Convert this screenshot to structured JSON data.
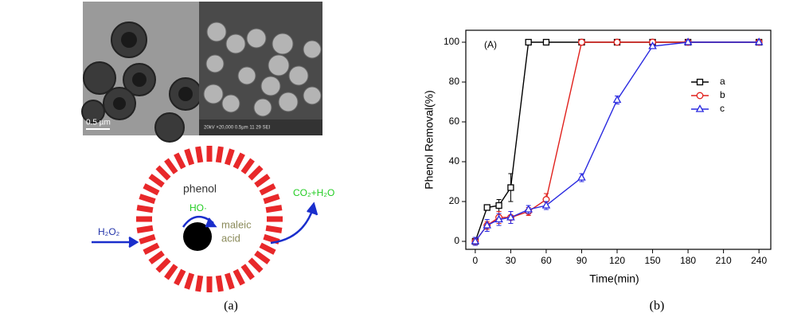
{
  "panel_a": {
    "scale_bar": "0.5 µm",
    "sem_info": "20kV  ×20,000  0.5µm    11 29 SEI",
    "labels": {
      "phenol": "phenol",
      "radical": "HO·",
      "maleic": "maleic",
      "acid": "acid",
      "oxidant": "H₂O₂",
      "products": "CO₂+H₂O"
    }
  },
  "captions": [
    "(a)",
    "(b)"
  ],
  "chart_data": {
    "type": "line",
    "annotation": "(A)",
    "x_label": "Time(min)",
    "y_label": "Phenol Removal(%)",
    "x": [
      0,
      10,
      20,
      30,
      45,
      60,
      90,
      120,
      150,
      180,
      240
    ],
    "series": [
      {
        "name": "a",
        "color": "#000000",
        "marker": "square",
        "values": [
          0,
          17,
          18,
          27,
          100,
          100,
          100,
          100,
          100,
          100,
          100
        ],
        "errors": [
          2,
          1,
          3,
          7,
          0,
          0,
          0,
          0,
          0,
          0,
          0
        ]
      },
      {
        "name": "b",
        "color": "#e0201c",
        "marker": "circle",
        "values": [
          0,
          8,
          12,
          12,
          15,
          21,
          100,
          100,
          100,
          100,
          100
        ],
        "errors": [
          2,
          2,
          3,
          3,
          2,
          3,
          0,
          0,
          0,
          0,
          0
        ]
      },
      {
        "name": "c",
        "color": "#2a2ae0",
        "marker": "triangle",
        "values": [
          0,
          8,
          11,
          12,
          16,
          18,
          32,
          71,
          98,
          100,
          100
        ],
        "errors": [
          2,
          3,
          3,
          3,
          2,
          2,
          2,
          2,
          1,
          1,
          0
        ]
      }
    ],
    "xlim": [
      -8,
      250
    ],
    "ylim": [
      -4,
      106
    ],
    "xticks": [
      0,
      30,
      60,
      90,
      120,
      150,
      180,
      210,
      240
    ],
    "yticks": [
      0,
      20,
      40,
      60,
      80,
      100
    ],
    "legend": "upper-right"
  }
}
